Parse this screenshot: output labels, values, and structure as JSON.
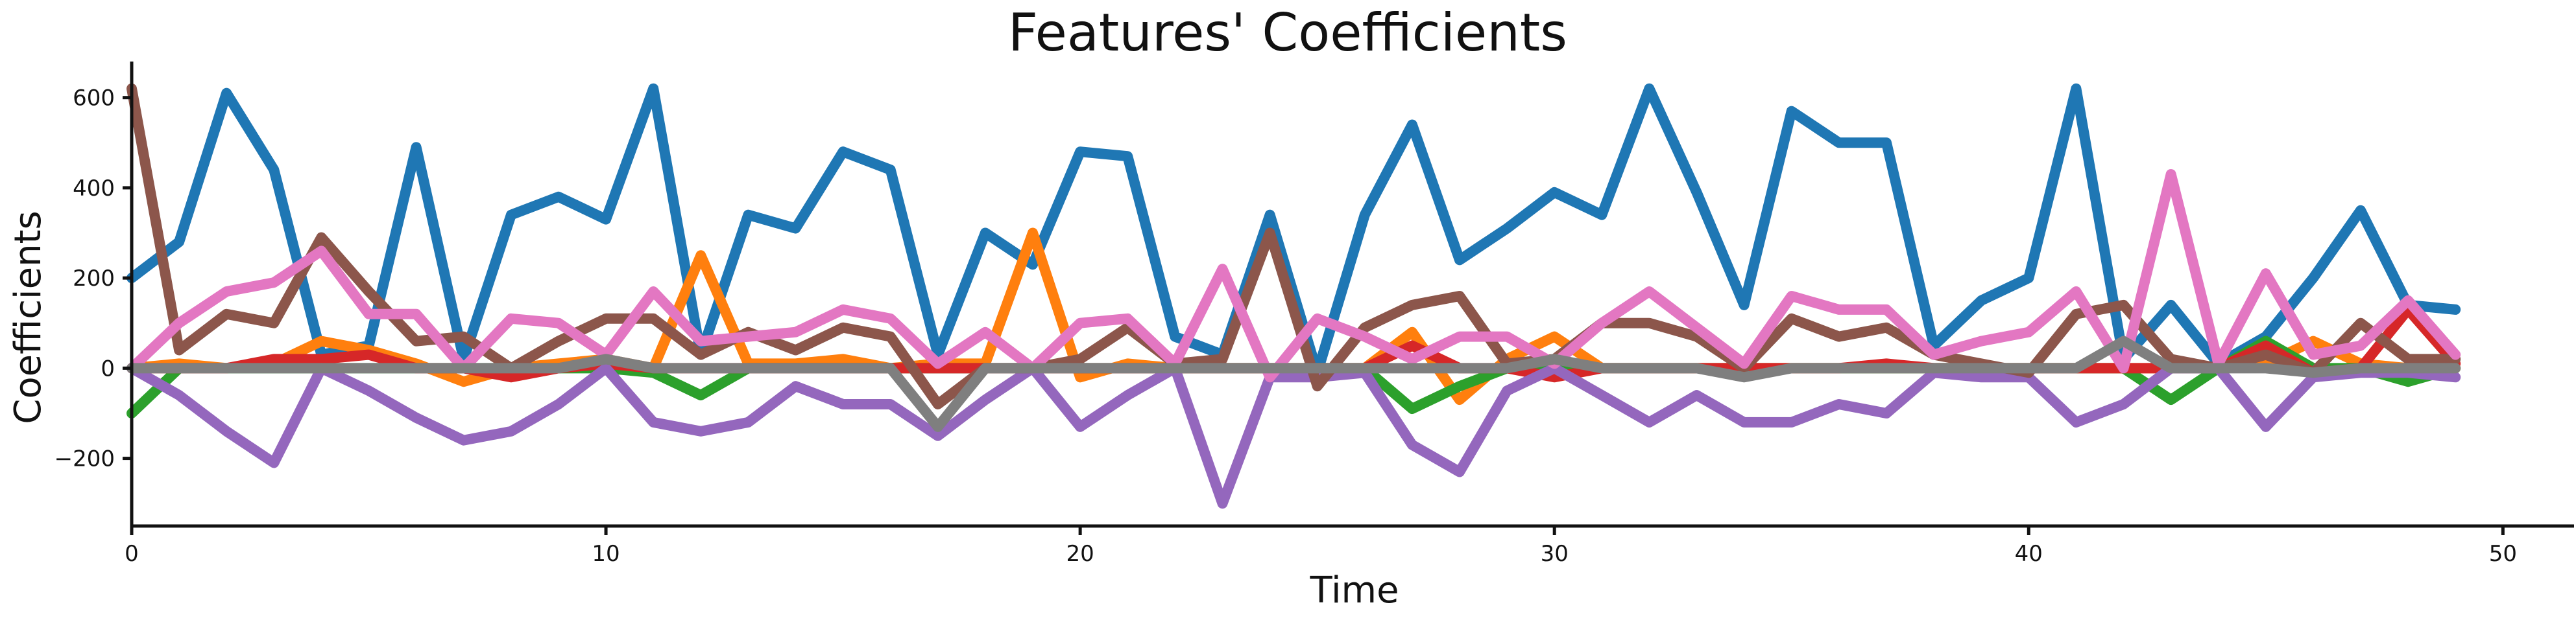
{
  "chart_data": {
    "type": "line",
    "title": "Features' Coefficients",
    "xlabel": "Time",
    "ylabel": "Coefficients",
    "xlim": [
      0,
      51.5
    ],
    "ylim": [
      -350,
      680
    ],
    "xticks": [
      0,
      10,
      20,
      30,
      40,
      50
    ],
    "yticks": [
      -200,
      0,
      200,
      400,
      600
    ],
    "grid": false,
    "legend": "none",
    "x": [
      0,
      1,
      2,
      3,
      4,
      5,
      6,
      7,
      8,
      9,
      10,
      11,
      12,
      13,
      14,
      15,
      16,
      17,
      18,
      19,
      20,
      21,
      22,
      23,
      24,
      25,
      26,
      27,
      28,
      29,
      30,
      31,
      32,
      33,
      34,
      35,
      36,
      37,
      38,
      39,
      40,
      41,
      42,
      43,
      44,
      45,
      46,
      47,
      48,
      49
    ],
    "series": [
      {
        "color": "#1f77b4",
        "values": [
          200,
          280,
          610,
          440,
          30,
          50,
          490,
          20,
          340,
          380,
          330,
          620,
          30,
          340,
          310,
          480,
          440,
          30,
          300,
          230,
          480,
          470,
          70,
          30,
          340,
          -10,
          340,
          540,
          240,
          310,
          390,
          340,
          620,
          390,
          140,
          570,
          500,
          500,
          50,
          150,
          200,
          620,
          20,
          140,
          10,
          70,
          200,
          350,
          140,
          130
        ]
      },
      {
        "color": "#ff7f0e",
        "values": [
          0,
          10,
          0,
          10,
          60,
          40,
          10,
          -30,
          0,
          10,
          20,
          0,
          250,
          10,
          10,
          20,
          0,
          10,
          10,
          300,
          -20,
          10,
          0,
          0,
          0,
          0,
          0,
          80,
          -70,
          20,
          70,
          0,
          0,
          0,
          0,
          0,
          0,
          0,
          0,
          0,
          0,
          0,
          0,
          0,
          0,
          10,
          60,
          10,
          0,
          0
        ]
      },
      {
        "color": "#2ca02c",
        "values": [
          -100,
          0,
          0,
          0,
          0,
          0,
          0,
          0,
          0,
          0,
          0,
          -10,
          -60,
          0,
          0,
          0,
          0,
          0,
          0,
          0,
          0,
          0,
          0,
          0,
          0,
          0,
          0,
          -90,
          -40,
          0,
          0,
          0,
          0,
          0,
          0,
          0,
          0,
          0,
          0,
          0,
          0,
          0,
          0,
          -70,
          0,
          60,
          0,
          0,
          -30,
          0
        ]
      },
      {
        "color": "#d62728",
        "values": [
          0,
          0,
          0,
          20,
          20,
          30,
          0,
          0,
          -20,
          0,
          10,
          0,
          0,
          0,
          0,
          0,
          0,
          0,
          0,
          0,
          0,
          0,
          0,
          0,
          0,
          0,
          0,
          50,
          0,
          0,
          -20,
          0,
          0,
          0,
          0,
          0,
          0,
          10,
          0,
          0,
          0,
          0,
          0,
          0,
          0,
          50,
          -10,
          0,
          130,
          10
        ]
      },
      {
        "color": "#9467bd",
        "values": [
          0,
          -60,
          -140,
          -210,
          0,
          -50,
          -110,
          -160,
          -140,
          -80,
          0,
          -120,
          -140,
          -120,
          -40,
          -80,
          -80,
          -150,
          -70,
          0,
          -130,
          -60,
          0,
          -300,
          -20,
          -20,
          -10,
          -170,
          -230,
          -50,
          0,
          -60,
          -120,
          -60,
          -120,
          -120,
          -80,
          -100,
          -10,
          -20,
          -20,
          -120,
          -80,
          0,
          0,
          -130,
          -20,
          -10,
          -10,
          -20
        ]
      },
      {
        "color": "#8c564b",
        "values": [
          620,
          40,
          120,
          100,
          290,
          170,
          60,
          70,
          0,
          60,
          110,
          110,
          30,
          80,
          40,
          90,
          70,
          -80,
          0,
          0,
          20,
          90,
          10,
          20,
          300,
          -40,
          90,
          140,
          160,
          10,
          20,
          100,
          100,
          70,
          0,
          110,
          70,
          90,
          30,
          10,
          -10,
          120,
          140,
          20,
          0,
          30,
          -10,
          100,
          20,
          20
        ]
      },
      {
        "color": "#e377c2",
        "values": [
          0,
          100,
          170,
          190,
          260,
          120,
          120,
          0,
          110,
          100,
          30,
          170,
          60,
          70,
          80,
          130,
          110,
          10,
          80,
          0,
          100,
          110,
          10,
          220,
          -20,
          110,
          70,
          20,
          70,
          70,
          10,
          100,
          170,
          90,
          10,
          160,
          130,
          130,
          30,
          60,
          80,
          170,
          0,
          430,
          10,
          210,
          30,
          50,
          150,
          30
        ]
      },
      {
        "color": "#7f7f7f",
        "values": [
          0,
          0,
          0,
          0,
          0,
          0,
          0,
          0,
          0,
          0,
          20,
          0,
          0,
          0,
          0,
          0,
          0,
          -130,
          0,
          0,
          0,
          0,
          0,
          0,
          0,
          0,
          0,
          0,
          0,
          0,
          20,
          0,
          0,
          0,
          -20,
          0,
          0,
          0,
          0,
          0,
          0,
          0,
          60,
          0,
          0,
          0,
          -10,
          0,
          0,
          0
        ]
      }
    ]
  }
}
